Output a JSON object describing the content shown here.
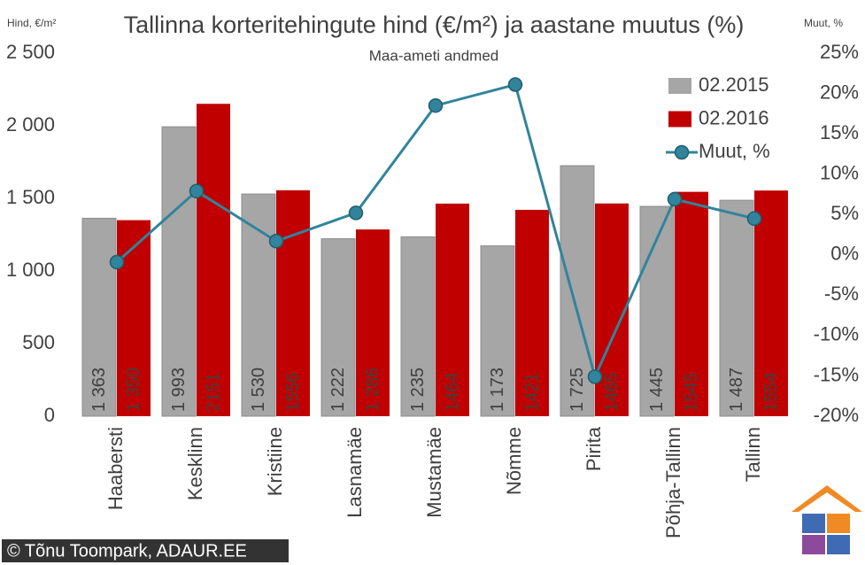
{
  "chart_data": {
    "type": "bar-line",
    "title": "Tallinna korteritehingute hind (€/m²) ja aastane muutus (%)",
    "subtitle": "Maa-ameti andmed",
    "y_label": "Hind, €/m²",
    "y2_label": "Muut, %",
    "credit": "© Tõnu Toompark, ADAUR.EE",
    "categories": [
      "Haabersti",
      "Kesklinn",
      "Kristiine",
      "Lasnamäe",
      "Mustamäe",
      "Nõmme",
      "Pirita",
      "Põhja-Tallinn",
      "Tallinn"
    ],
    "series": [
      {
        "name": "02.2015",
        "color": "#a6a6a6",
        "values": [
          1363,
          1993,
          1530,
          1222,
          1235,
          1173,
          1725,
          1445,
          1487
        ],
        "value_labels": [
          "1 363",
          "1 993",
          "1 530",
          "1 222",
          "1 235",
          "1 173",
          "1 725",
          "1 445",
          "1 487"
        ]
      },
      {
        "name": "02.2016",
        "color": "#c00000",
        "values": [
          1350,
          2151,
          1556,
          1286,
          1464,
          1421,
          1465,
          1545,
          1554
        ],
        "value_labels": [
          "1 350",
          "2151",
          "1556",
          "1 286",
          "1464",
          "1421",
          "1465",
          "1545",
          "1554"
        ]
      },
      {
        "name": "Muut, %",
        "color": "#31849b",
        "axis": "y2",
        "values": [
          -0.9,
          7.9,
          1.7,
          5.2,
          18.5,
          21.1,
          -15.1,
          6.9,
          4.5
        ]
      }
    ],
    "ylim": [
      0,
      2500
    ],
    "yticks": [
      0,
      500,
      {
        "value": 1000,
        "label": "1 000"
      },
      {
        "value": 1500,
        "label": "1 500"
      },
      {
        "value": 2000,
        "label": "2 000"
      },
      {
        "value": 2500,
        "label": "2 500"
      }
    ],
    "y2lim": [
      -20,
      25
    ],
    "y2ticks": [
      {
        "value": -20,
        "label": "-20%"
      },
      {
        "value": -15,
        "label": "-15%"
      },
      {
        "value": -10,
        "label": "-10%"
      },
      {
        "value": -5,
        "label": "-5%"
      },
      {
        "value": 0,
        "label": "0%"
      },
      {
        "value": 5,
        "label": "5%"
      },
      {
        "value": 10,
        "label": "10%"
      },
      {
        "value": 15,
        "label": "15%"
      },
      {
        "value": 20,
        "label": "20%"
      },
      {
        "value": 25,
        "label": "25%"
      }
    ]
  }
}
